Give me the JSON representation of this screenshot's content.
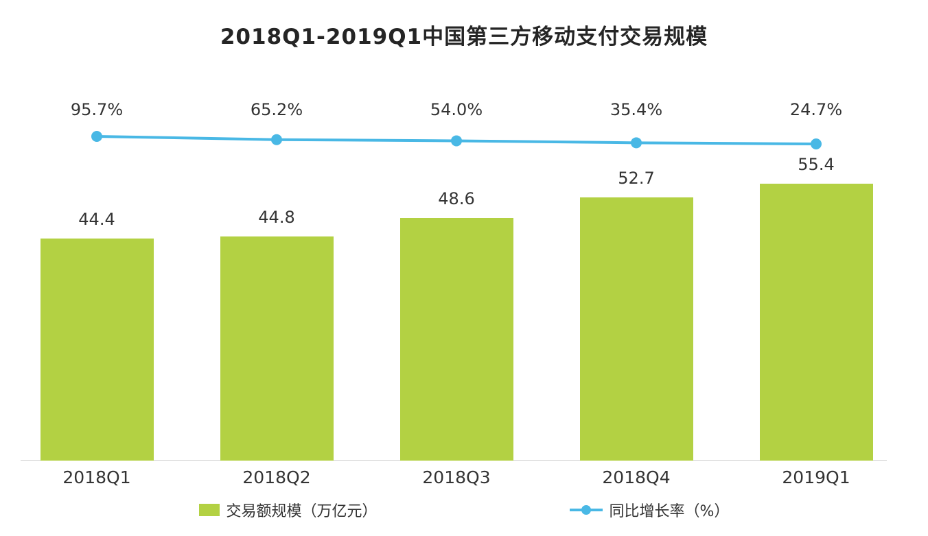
{
  "title": "2018Q1-2019Q1中国第三方移动支付交易规模",
  "chart_data": {
    "type": "bar",
    "subtype": "combo-bar-line",
    "categories": [
      "2018Q1",
      "2018Q2",
      "2018Q3",
      "2018Q4",
      "2019Q1"
    ],
    "series": [
      {
        "name": "交易额规模（万亿元）",
        "type": "bar",
        "values": [
          44.4,
          44.8,
          48.6,
          52.7,
          55.4
        ],
        "value_labels": [
          "44.4",
          "44.8",
          "48.6",
          "52.7",
          "55.4"
        ],
        "color": "#b3d143"
      },
      {
        "name": "同比增长率（%）",
        "type": "line",
        "values": [
          95.7,
          65.2,
          54.0,
          35.4,
          24.7
        ],
        "value_labels": [
          "95.7%",
          "65.2%",
          "54.0%",
          "35.4%",
          "24.7%"
        ],
        "color": "#49b8e5"
      }
    ],
    "title": "2018Q1-2019Q1中国第三方移动支付交易规模",
    "xlabel": "",
    "ylabel": "",
    "ylim": [
      0,
      60
    ],
    "grid": false,
    "legend_position": "bottom"
  },
  "legend": {
    "bar_label": "交易额规模（万亿元）",
    "line_label": "同比增长率（%）"
  },
  "colors": {
    "bar": "#b3d143",
    "line": "#49b8e5",
    "title_text": "#252525",
    "label_text": "#333333",
    "axis_line": "#d4d4d4",
    "background": "#ffffff"
  }
}
